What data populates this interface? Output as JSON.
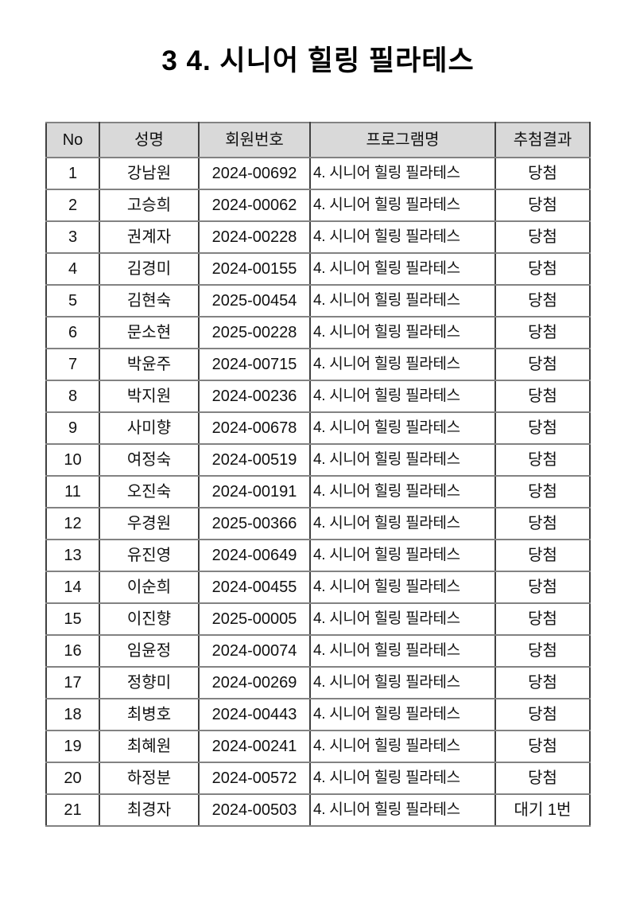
{
  "page": {
    "title": "3 4. 시니어 힐링 필라테스"
  },
  "colors": {
    "header_bg": "#d9d9d9",
    "border_dark": "#404040",
    "border_light": "#828282",
    "text": "#111111",
    "page_bg": "#ffffff"
  },
  "table": {
    "headers": [
      "No",
      "성명",
      "회원번호",
      "프로그램명",
      "추첨결과"
    ],
    "rows": [
      {
        "no": "1",
        "name": "강남원",
        "member_no": "2024-00692",
        "program": "4. 시니어 힐링 필라테스",
        "result": "당첨"
      },
      {
        "no": "2",
        "name": "고승희",
        "member_no": "2024-00062",
        "program": "4. 시니어 힐링 필라테스",
        "result": "당첨"
      },
      {
        "no": "3",
        "name": "권계자",
        "member_no": "2024-00228",
        "program": "4. 시니어 힐링 필라테스",
        "result": "당첨"
      },
      {
        "no": "4",
        "name": "김경미",
        "member_no": "2024-00155",
        "program": "4. 시니어 힐링 필라테스",
        "result": "당첨"
      },
      {
        "no": "5",
        "name": "김현숙",
        "member_no": "2025-00454",
        "program": "4. 시니어 힐링 필라테스",
        "result": "당첨"
      },
      {
        "no": "6",
        "name": "문소현",
        "member_no": "2025-00228",
        "program": "4. 시니어 힐링 필라테스",
        "result": "당첨"
      },
      {
        "no": "7",
        "name": "박윤주",
        "member_no": "2024-00715",
        "program": "4. 시니어 힐링 필라테스",
        "result": "당첨"
      },
      {
        "no": "8",
        "name": "박지원",
        "member_no": "2024-00236",
        "program": "4. 시니어 힐링 필라테스",
        "result": "당첨"
      },
      {
        "no": "9",
        "name": "사미향",
        "member_no": "2024-00678",
        "program": "4. 시니어 힐링 필라테스",
        "result": "당첨"
      },
      {
        "no": "10",
        "name": "여정숙",
        "member_no": "2024-00519",
        "program": "4. 시니어 힐링 필라테스",
        "result": "당첨"
      },
      {
        "no": "11",
        "name": "오진숙",
        "member_no": "2024-00191",
        "program": "4. 시니어 힐링 필라테스",
        "result": "당첨"
      },
      {
        "no": "12",
        "name": "우경원",
        "member_no": "2025-00366",
        "program": "4. 시니어 힐링 필라테스",
        "result": "당첨"
      },
      {
        "no": "13",
        "name": "유진영",
        "member_no": "2024-00649",
        "program": "4. 시니어 힐링 필라테스",
        "result": "당첨"
      },
      {
        "no": "14",
        "name": "이순희",
        "member_no": "2024-00455",
        "program": "4. 시니어 힐링 필라테스",
        "result": "당첨"
      },
      {
        "no": "15",
        "name": "이진향",
        "member_no": "2025-00005",
        "program": "4. 시니어 힐링 필라테스",
        "result": "당첨"
      },
      {
        "no": "16",
        "name": "임윤정",
        "member_no": "2024-00074",
        "program": "4. 시니어 힐링 필라테스",
        "result": "당첨"
      },
      {
        "no": "17",
        "name": "정향미",
        "member_no": "2024-00269",
        "program": "4. 시니어 힐링 필라테스",
        "result": "당첨"
      },
      {
        "no": "18",
        "name": "최병호",
        "member_no": "2024-00443",
        "program": "4. 시니어 힐링 필라테스",
        "result": "당첨"
      },
      {
        "no": "19",
        "name": "최혜원",
        "member_no": "2024-00241",
        "program": "4. 시니어 힐링 필라테스",
        "result": "당첨"
      },
      {
        "no": "20",
        "name": "하정분",
        "member_no": "2024-00572",
        "program": "4. 시니어 힐링 필라테스",
        "result": "당첨"
      },
      {
        "no": "21",
        "name": "최경자",
        "member_no": "2024-00503",
        "program": "4. 시니어 힐링 필라테스",
        "result": "대기 1번"
      }
    ]
  }
}
